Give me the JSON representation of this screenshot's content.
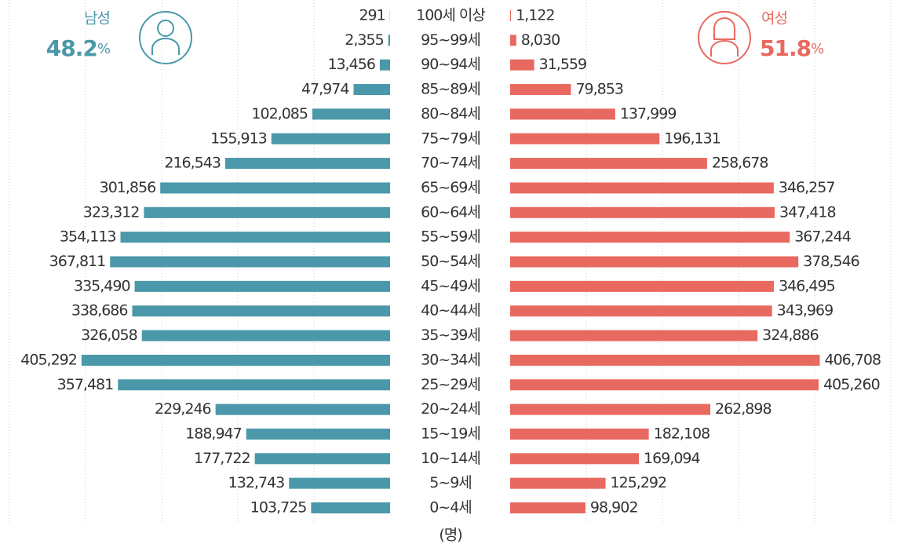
{
  "chart_data": {
    "type": "pyramid",
    "categories": [
      "100세 이상",
      "95~99세",
      "90~94세",
      "85~89세",
      "80~84세",
      "75~79세",
      "70~74세",
      "65~69세",
      "60~64세",
      "55~59세",
      "50~54세",
      "45~49세",
      "40~44세",
      "35~39세",
      "30~34세",
      "25~29세",
      "20~24세",
      "15~19세",
      "10~14세",
      "5~9세",
      "0~4세"
    ],
    "series": [
      {
        "name": "남성",
        "share": "48.2",
        "share_unit": "%",
        "color": "#4a98a9",
        "values": [
          291,
          2355,
          13456,
          47974,
          102085,
          155913,
          216543,
          301856,
          323312,
          354113,
          367811,
          335490,
          338686,
          326058,
          405292,
          357481,
          229246,
          188947,
          177722,
          132743,
          103725
        ],
        "value_labels": [
          "291",
          "2,355",
          "13,456",
          "47,974",
          "102,085",
          "155,913",
          "216,543",
          "301,856",
          "323,312",
          "354,113",
          "367,811",
          "335,490",
          "338,686",
          "326,058",
          "405,292",
          "357,481",
          "229,246",
          "188,947",
          "177,722",
          "132,743",
          "103,725"
        ]
      },
      {
        "name": "여성",
        "share": "51.8",
        "share_unit": "%",
        "color": "#e8695f",
        "values": [
          1122,
          8030,
          31559,
          79853,
          137999,
          196131,
          258678,
          346257,
          347418,
          367244,
          378546,
          346495,
          343969,
          324886,
          406708,
          405260,
          262898,
          182108,
          169094,
          125292,
          98902
        ],
        "value_labels": [
          "1,122",
          "8,030",
          "31,559",
          "79,853",
          "137,999",
          "196,131",
          "258,678",
          "346,257",
          "347,418",
          "367,244",
          "378,546",
          "346,495",
          "343,969",
          "324,886",
          "406,708",
          "405,260",
          "262,898",
          "182,108",
          "169,094",
          "125,292",
          "98,902"
        ]
      }
    ],
    "xlim": [
      0,
      500000
    ],
    "xticks": [
      100000,
      200000,
      300000,
      400000,
      500000
    ],
    "grid": true,
    "unit_label": "(명)"
  }
}
